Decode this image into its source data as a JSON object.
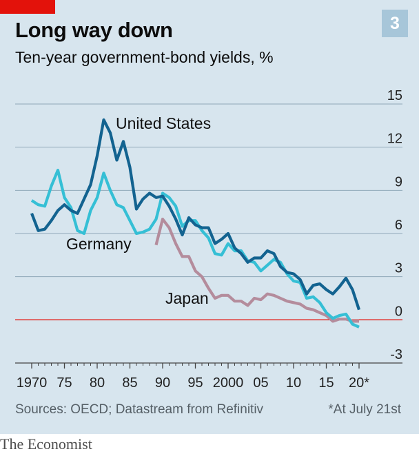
{
  "header": {
    "title": "Long way down",
    "subtitle": "Ten-year government-bond yields, %",
    "badge": "3"
  },
  "footer": {
    "sources": "Sources: OECD; Datastream from Refinitiv",
    "note": "*At July 21st"
  },
  "brand": "The Economist",
  "colors": {
    "background": "#d7e5ee",
    "united_states": "#136390",
    "germany": "#35bfd5",
    "japan": "#b48c9c",
    "zero_line": "#e3120b",
    "grid": "#8fa8b8"
  },
  "chart_data": {
    "type": "line",
    "title": "Long way down",
    "subtitle": "Ten-year government-bond yields, %",
    "ylim": [
      -3,
      15
    ],
    "xlim": [
      1969.5,
      2021
    ],
    "y_ticks": [
      {
        "value": 15,
        "label": "15"
      },
      {
        "value": 12,
        "label": "12"
      },
      {
        "value": 9,
        "label": "9"
      },
      {
        "value": 6,
        "label": "6"
      },
      {
        "value": 3,
        "label": "3"
      },
      {
        "value": 0,
        "label": "0"
      },
      {
        "value": -3,
        "label": "-3"
      }
    ],
    "x_ticks": [
      {
        "value": 1970,
        "label": "1970"
      },
      {
        "value": 1975,
        "label": "75"
      },
      {
        "value": 1980,
        "label": "80"
      },
      {
        "value": 1985,
        "label": "85"
      },
      {
        "value": 1990,
        "label": "90"
      },
      {
        "value": 1995,
        "label": "95"
      },
      {
        "value": 2000,
        "label": "2000"
      },
      {
        "value": 2005,
        "label": "05"
      },
      {
        "value": 2010,
        "label": "10"
      },
      {
        "value": 2015,
        "label": "15"
      },
      {
        "value": 2020,
        "label": "20*"
      }
    ],
    "grid": true,
    "series": [
      {
        "name": "United States",
        "color": "#136390",
        "points": [
          [
            1970,
            7.4
          ],
          [
            1971,
            6.2
          ],
          [
            1972,
            6.3
          ],
          [
            1973,
            6.9
          ],
          [
            1974,
            7.6
          ],
          [
            1975,
            8.0
          ],
          [
            1976,
            7.6
          ],
          [
            1977,
            7.4
          ],
          [
            1978,
            8.4
          ],
          [
            1979,
            9.4
          ],
          [
            1980,
            11.4
          ],
          [
            1981,
            13.9
          ],
          [
            1982,
            13.0
          ],
          [
            1983,
            11.1
          ],
          [
            1984,
            12.4
          ],
          [
            1985,
            10.6
          ],
          [
            1986,
            7.7
          ],
          [
            1987,
            8.4
          ],
          [
            1988,
            8.8
          ],
          [
            1989,
            8.5
          ],
          [
            1990,
            8.6
          ],
          [
            1991,
            7.9
          ],
          [
            1992,
            7.0
          ],
          [
            1993,
            5.9
          ],
          [
            1994,
            7.1
          ],
          [
            1995,
            6.6
          ],
          [
            1996,
            6.4
          ],
          [
            1997,
            6.4
          ],
          [
            1998,
            5.3
          ],
          [
            1999,
            5.6
          ],
          [
            2000,
            6.0
          ],
          [
            2001,
            5.0
          ],
          [
            2002,
            4.6
          ],
          [
            2003,
            4.0
          ],
          [
            2004,
            4.3
          ],
          [
            2005,
            4.3
          ],
          [
            2006,
            4.8
          ],
          [
            2007,
            4.6
          ],
          [
            2008,
            3.7
          ],
          [
            2009,
            3.3
          ],
          [
            2010,
            3.2
          ],
          [
            2011,
            2.8
          ],
          [
            2012,
            1.8
          ],
          [
            2013,
            2.4
          ],
          [
            2014,
            2.5
          ],
          [
            2015,
            2.1
          ],
          [
            2016,
            1.8
          ],
          [
            2017,
            2.3
          ],
          [
            2018,
            2.9
          ],
          [
            2019,
            2.1
          ],
          [
            2020,
            0.7
          ]
        ]
      },
      {
        "name": "Germany",
        "color": "#35bfd5",
        "points": [
          [
            1970,
            8.3
          ],
          [
            1971,
            8.0
          ],
          [
            1972,
            7.9
          ],
          [
            1973,
            9.3
          ],
          [
            1974,
            10.4
          ],
          [
            1975,
            8.5
          ],
          [
            1976,
            7.8
          ],
          [
            1977,
            6.2
          ],
          [
            1978,
            6.0
          ],
          [
            1979,
            7.6
          ],
          [
            1980,
            8.5
          ],
          [
            1981,
            10.2
          ],
          [
            1982,
            9.0
          ],
          [
            1983,
            8.0
          ],
          [
            1984,
            7.8
          ],
          [
            1985,
            6.9
          ],
          [
            1986,
            6.0
          ],
          [
            1987,
            6.1
          ],
          [
            1988,
            6.3
          ],
          [
            1989,
            7.0
          ],
          [
            1990,
            8.8
          ],
          [
            1991,
            8.5
          ],
          [
            1992,
            7.9
          ],
          [
            1993,
            6.5
          ],
          [
            1994,
            6.9
          ],
          [
            1995,
            6.9
          ],
          [
            1996,
            6.2
          ],
          [
            1997,
            5.7
          ],
          [
            1998,
            4.6
          ],
          [
            1999,
            4.5
          ],
          [
            2000,
            5.3
          ],
          [
            2001,
            4.8
          ],
          [
            2002,
            4.8
          ],
          [
            2003,
            4.1
          ],
          [
            2004,
            4.0
          ],
          [
            2005,
            3.4
          ],
          [
            2006,
            3.8
          ],
          [
            2007,
            4.2
          ],
          [
            2008,
            4.0
          ],
          [
            2009,
            3.2
          ],
          [
            2010,
            2.7
          ],
          [
            2011,
            2.6
          ],
          [
            2012,
            1.5
          ],
          [
            2013,
            1.6
          ],
          [
            2014,
            1.2
          ],
          [
            2015,
            0.5
          ],
          [
            2016,
            0.1
          ],
          [
            2017,
            0.3
          ],
          [
            2018,
            0.4
          ],
          [
            2019,
            -0.3
          ],
          [
            2020,
            -0.5
          ]
        ]
      },
      {
        "name": "Japan",
        "color": "#b48c9c",
        "points": [
          [
            1989,
            5.2
          ],
          [
            1990,
            7.0
          ],
          [
            1991,
            6.4
          ],
          [
            1992,
            5.3
          ],
          [
            1993,
            4.4
          ],
          [
            1994,
            4.4
          ],
          [
            1995,
            3.4
          ],
          [
            1996,
            3.0
          ],
          [
            1997,
            2.2
          ],
          [
            1998,
            1.5
          ],
          [
            1999,
            1.7
          ],
          [
            2000,
            1.7
          ],
          [
            2001,
            1.3
          ],
          [
            2002,
            1.3
          ],
          [
            2003,
            1.0
          ],
          [
            2004,
            1.5
          ],
          [
            2005,
            1.4
          ],
          [
            2006,
            1.8
          ],
          [
            2007,
            1.7
          ],
          [
            2008,
            1.5
          ],
          [
            2009,
            1.3
          ],
          [
            2010,
            1.2
          ],
          [
            2011,
            1.1
          ],
          [
            2012,
            0.8
          ],
          [
            2013,
            0.7
          ],
          [
            2014,
            0.5
          ],
          [
            2015,
            0.3
          ],
          [
            2016,
            -0.1
          ],
          [
            2017,
            0.05
          ],
          [
            2018,
            0.05
          ],
          [
            2019,
            -0.1
          ],
          [
            2020,
            -0.1
          ]
        ]
      }
    ],
    "series_labels": [
      {
        "text": "United States",
        "series": "United States"
      },
      {
        "text": "Germany",
        "series": "Germany"
      },
      {
        "text": "Japan",
        "series": "Japan"
      }
    ]
  }
}
